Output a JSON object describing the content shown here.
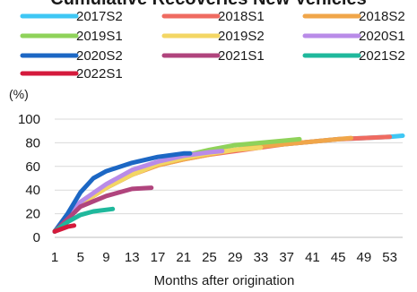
{
  "chart_data": {
    "type": "line",
    "title": "Cumulative Recoveries New Vehicles",
    "ylabel": "(%)",
    "xlabel": "Months after origination",
    "xlim": [
      1,
      55
    ],
    "ylim": [
      0,
      100
    ],
    "x_ticks": [
      1,
      5,
      9,
      13,
      17,
      21,
      25,
      29,
      33,
      37,
      41,
      45,
      49,
      53
    ],
    "y_ticks": [
      0,
      20,
      40,
      60,
      80,
      100
    ],
    "grid": "horizontal",
    "legend": "top",
    "series": [
      {
        "name": "2017S2",
        "color": "#3fc7f4",
        "points": [
          [
            1,
            5
          ],
          [
            5,
            28
          ],
          [
            9,
            42
          ],
          [
            13,
            53
          ],
          [
            17,
            62
          ],
          [
            21,
            67
          ],
          [
            25,
            71
          ],
          [
            29,
            74
          ],
          [
            33,
            77
          ],
          [
            37,
            79
          ],
          [
            41,
            81
          ],
          [
            45,
            83
          ],
          [
            49,
            84
          ],
          [
            53,
            85
          ],
          [
            55,
            86
          ]
        ]
      },
      {
        "name": "2018S1",
        "color": "#ef6b61",
        "points": [
          [
            1,
            5
          ],
          [
            5,
            28
          ],
          [
            9,
            42
          ],
          [
            13,
            53
          ],
          [
            17,
            61
          ],
          [
            21,
            66
          ],
          [
            25,
            70
          ],
          [
            29,
            73
          ],
          [
            33,
            76
          ],
          [
            37,
            79
          ],
          [
            41,
            81
          ],
          [
            45,
            83
          ],
          [
            49,
            84
          ],
          [
            53,
            85
          ]
        ]
      },
      {
        "name": "2018S2",
        "color": "#f0a64a",
        "points": [
          [
            1,
            5
          ],
          [
            5,
            28
          ],
          [
            9,
            42
          ],
          [
            13,
            53
          ],
          [
            17,
            61
          ],
          [
            21,
            66
          ],
          [
            25,
            70
          ],
          [
            29,
            74
          ],
          [
            33,
            77
          ],
          [
            37,
            79
          ],
          [
            41,
            81
          ],
          [
            45,
            83
          ],
          [
            47,
            84
          ]
        ]
      },
      {
        "name": "2019S1",
        "color": "#8fd25a",
        "points": [
          [
            1,
            5
          ],
          [
            5,
            29
          ],
          [
            9,
            43
          ],
          [
            13,
            54
          ],
          [
            17,
            63
          ],
          [
            21,
            69
          ],
          [
            25,
            74
          ],
          [
            29,
            78
          ],
          [
            33,
            80
          ],
          [
            37,
            82
          ],
          [
            39,
            83
          ]
        ]
      },
      {
        "name": "2019S2",
        "color": "#f3d664",
        "points": [
          [
            1,
            5
          ],
          [
            5,
            28
          ],
          [
            9,
            42
          ],
          [
            13,
            53
          ],
          [
            17,
            62
          ],
          [
            21,
            67
          ],
          [
            25,
            71
          ],
          [
            29,
            74
          ],
          [
            33,
            76
          ]
        ]
      },
      {
        "name": "2020S1",
        "color": "#b98be8",
        "points": [
          [
            1,
            5
          ],
          [
            5,
            30
          ],
          [
            9,
            45
          ],
          [
            13,
            57
          ],
          [
            17,
            64
          ],
          [
            21,
            69
          ],
          [
            25,
            72
          ],
          [
            27,
            73
          ]
        ]
      },
      {
        "name": "2020S2",
        "color": "#1c67c4",
        "points": [
          [
            1,
            5
          ],
          [
            3,
            20
          ],
          [
            5,
            38
          ],
          [
            7,
            50
          ],
          [
            9,
            56
          ],
          [
            13,
            63
          ],
          [
            17,
            68
          ],
          [
            21,
            71
          ],
          [
            22,
            71
          ]
        ]
      },
      {
        "name": "2021S1",
        "color": "#b0447d",
        "points": [
          [
            1,
            5
          ],
          [
            5,
            26
          ],
          [
            9,
            35
          ],
          [
            13,
            41
          ],
          [
            16,
            42
          ]
        ]
      },
      {
        "name": "2021S2",
        "color": "#1fb89c",
        "points": [
          [
            1,
            5
          ],
          [
            3,
            13
          ],
          [
            5,
            19
          ],
          [
            7,
            22
          ],
          [
            10,
            24
          ]
        ]
      },
      {
        "name": "2022S1",
        "color": "#d41a3c",
        "points": [
          [
            1,
            5
          ],
          [
            3,
            9
          ],
          [
            4,
            10
          ]
        ]
      }
    ]
  }
}
